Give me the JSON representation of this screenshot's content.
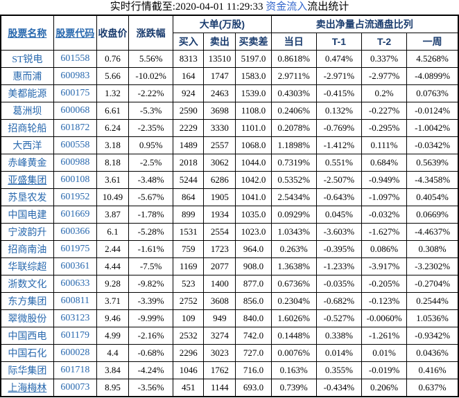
{
  "title": {
    "prefix": "实时行情截至:2020-04-01 11:29:33 ",
    "link": "资金流入",
    "suffix": "流出统计"
  },
  "colors": {
    "header_navy": "#1a3c6e",
    "link_blue": "#2868ae",
    "title_link_blue": "#3366cc",
    "border": "#000000",
    "background": "#ffffff"
  },
  "table": {
    "headers": {
      "name": "股票名称",
      "code": "股票代码",
      "close": "收盘价",
      "change": "涨跌幅",
      "large_order_group": "大单(万股)",
      "buy": "买入",
      "sell": "卖出",
      "diff": "买卖差",
      "net_sell_group": "卖出净量占流通盘比列",
      "day": "当日",
      "t1": "T-1",
      "t2": "T-2",
      "week": "一周"
    },
    "rows": [
      {
        "name": "ST锐电",
        "underlined": false,
        "code": "601558",
        "close": "0.76",
        "change": "5.56%",
        "buy": "8313",
        "sell": "13510",
        "diff": "5197.0",
        "day": "0.8618%",
        "t1": "0.474%",
        "t2": "0.337%",
        "week": "4.5268%"
      },
      {
        "name": "惠而浦",
        "underlined": false,
        "code": "600983",
        "close": "5.66",
        "change": "-10.02%",
        "buy": "164",
        "sell": "1747",
        "diff": "1583.0",
        "day": "2.9711%",
        "t1": "-2.971%",
        "t2": "-2.977%",
        "week": "-4.0899%"
      },
      {
        "name": "美都能源",
        "underlined": false,
        "code": "600175",
        "close": "1.32",
        "change": "-2.22%",
        "buy": "924",
        "sell": "2463",
        "diff": "1539.0",
        "day": "0.4303%",
        "t1": "-0.415%",
        "t2": "0.2%",
        "week": "0.0763%"
      },
      {
        "name": "葛洲坝",
        "underlined": false,
        "code": "600068",
        "close": "6.61",
        "change": "-5.3%",
        "buy": "2590",
        "sell": "3698",
        "diff": "1108.0",
        "day": "0.2406%",
        "t1": "0.132%",
        "t2": "-0.227%",
        "week": "-0.0124%"
      },
      {
        "name": "招商轮船",
        "underlined": false,
        "code": "601872",
        "close": "6.24",
        "change": "-2.35%",
        "buy": "2229",
        "sell": "3330",
        "diff": "1101.0",
        "day": "0.2078%",
        "t1": "-0.769%",
        "t2": "-0.295%",
        "week": "-1.0042%"
      },
      {
        "name": "大西洋",
        "underlined": false,
        "code": "600558",
        "close": "3.18",
        "change": "0.95%",
        "buy": "1489",
        "sell": "2557",
        "diff": "1068.0",
        "day": "1.1898%",
        "t1": "-1.412%",
        "t2": "0.111%",
        "week": "-0.0342%"
      },
      {
        "name": "赤峰黄金",
        "underlined": false,
        "code": "600988",
        "close": "8.18",
        "change": "-2.5%",
        "buy": "2018",
        "sell": "3062",
        "diff": "1044.0",
        "day": "0.7319%",
        "t1": "0.551%",
        "t2": "0.684%",
        "week": "0.5639%"
      },
      {
        "name": "亚盛集团",
        "underlined": true,
        "code": "600108",
        "close": "3.61",
        "change": "-3.48%",
        "buy": "5244",
        "sell": "6286",
        "diff": "1042.0",
        "day": "0.5352%",
        "t1": "-2.507%",
        "t2": "-0.949%",
        "week": "-4.3458%"
      },
      {
        "name": "苏垦农发",
        "underlined": false,
        "code": "601952",
        "close": "10.49",
        "change": "-5.67%",
        "buy": "864",
        "sell": "1905",
        "diff": "1041.0",
        "day": "2.5434%",
        "t1": "-0.643%",
        "t2": "-1.097%",
        "week": "0.4054%"
      },
      {
        "name": "中国电建",
        "underlined": false,
        "code": "601669",
        "close": "3.87",
        "change": "-1.78%",
        "buy": "899",
        "sell": "1934",
        "diff": "1035.0",
        "day": "0.0929%",
        "t1": "0.045%",
        "t2": "-0.032%",
        "week": "0.0669%"
      },
      {
        "name": "宁波韵升",
        "underlined": false,
        "code": "600366",
        "close": "6.1",
        "change": "-5.28%",
        "buy": "1531",
        "sell": "2554",
        "diff": "1023.0",
        "day": "1.0343%",
        "t1": "-3.603%",
        "t2": "-1.627%",
        "week": "-4.4637%"
      },
      {
        "name": "招商南油",
        "underlined": false,
        "code": "601975",
        "close": "2.44",
        "change": "-1.61%",
        "buy": "759",
        "sell": "1723",
        "diff": "964.0",
        "day": "0.263%",
        "t1": "-0.395%",
        "t2": "0.086%",
        "week": "0.308%"
      },
      {
        "name": "华联综超",
        "underlined": false,
        "code": "600361",
        "close": "4.44",
        "change": "-7.5%",
        "buy": "1169",
        "sell": "2077",
        "diff": "908.0",
        "day": "1.3638%",
        "t1": "-1.233%",
        "t2": "-3.917%",
        "week": "-3.2302%"
      },
      {
        "name": "浙数文化",
        "underlined": false,
        "code": "600633",
        "close": "9.28",
        "change": "-9.82%",
        "buy": "523",
        "sell": "1400",
        "diff": "877.0",
        "day": "0.6736%",
        "t1": "-0.035%",
        "t2": "-0.205%",
        "week": "-0.2704%"
      },
      {
        "name": "东方集团",
        "underlined": false,
        "code": "600811",
        "close": "3.71",
        "change": "-3.39%",
        "buy": "2752",
        "sell": "3608",
        "diff": "856.0",
        "day": "0.2304%",
        "t1": "-0.682%",
        "t2": "-0.123%",
        "week": "0.2544%"
      },
      {
        "name": "翠微股份",
        "underlined": false,
        "code": "603123",
        "close": "9.46",
        "change": "-9.99%",
        "buy": "109",
        "sell": "949",
        "diff": "840.0",
        "day": "1.6026%",
        "t1": "-0.527%",
        "t2": "-0.0060%",
        "week": "1.0536%"
      },
      {
        "name": "中国西电",
        "underlined": false,
        "code": "601179",
        "close": "4.99",
        "change": "-2.16%",
        "buy": "2532",
        "sell": "3274",
        "diff": "742.0",
        "day": "0.1448%",
        "t1": "0.338%",
        "t2": "-1.261%",
        "week": "-0.9342%"
      },
      {
        "name": "中国石化",
        "underlined": false,
        "code": "600028",
        "close": "4.4",
        "change": "-0.68%",
        "buy": "2296",
        "sell": "3023",
        "diff": "727.0",
        "day": "0.0076%",
        "t1": "0.014%",
        "t2": "0.01%",
        "week": "0.0436%"
      },
      {
        "name": "际华集团",
        "underlined": false,
        "code": "601718",
        "close": "3.84",
        "change": "-4.24%",
        "buy": "1046",
        "sell": "1762",
        "diff": "716.0",
        "day": "0.163%",
        "t1": "0.355%",
        "t2": "-0.019%",
        "week": "0.416%"
      },
      {
        "name": "上海梅林",
        "underlined": true,
        "code": "600073",
        "close": "8.95",
        "change": "-3.56%",
        "buy": "451",
        "sell": "1144",
        "diff": "693.0",
        "day": "0.739%",
        "t1": "-0.434%",
        "t2": "0.206%",
        "week": "0.637%"
      }
    ]
  }
}
